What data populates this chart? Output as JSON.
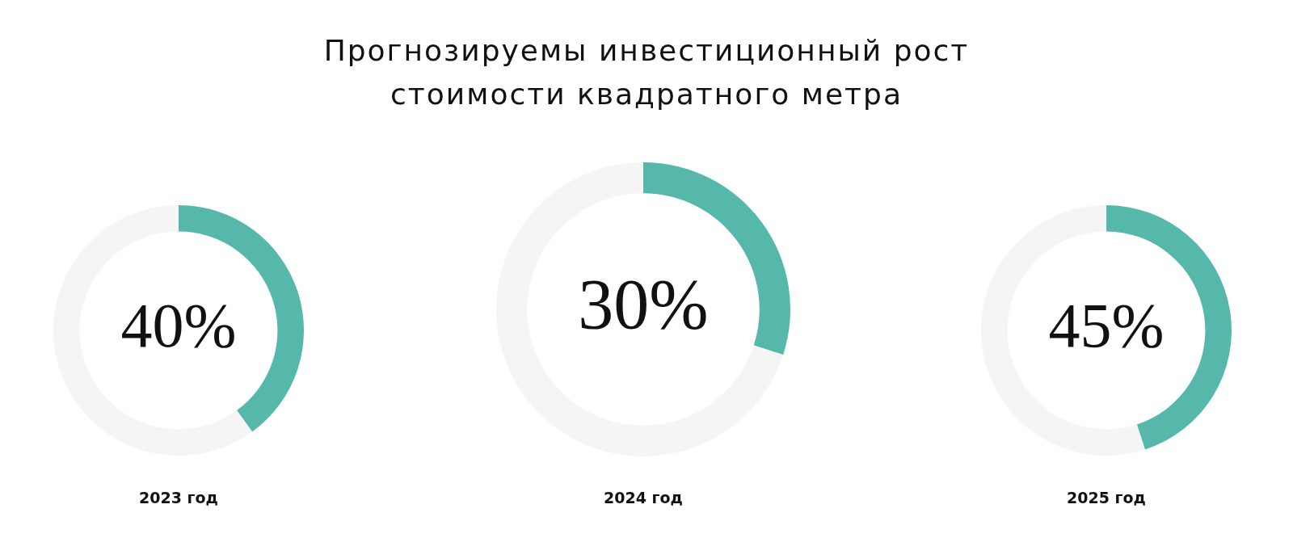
{
  "chart_data": [
    {
      "type": "donut",
      "categories": [
        null,
        null
      ],
      "values": [
        40,
        60
      ],
      "colors": [
        "#55b8aa",
        "#f5f5f5"
      ],
      "value_labels": [
        "40%",
        null
      ],
      "xlabel": "2023 год"
    },
    {
      "type": "donut",
      "title": "Прогнозируемы инвестиционный рост\nстоимости квадратного метра",
      "categories": [
        null,
        null
      ],
      "values": [
        30,
        70
      ],
      "colors": [
        "#55b8aa",
        "#f5f5f5"
      ],
      "value_labels": [
        "30%",
        null
      ],
      "xlabel": "2024 год"
    },
    {
      "type": "donut",
      "categories": [
        null,
        null
      ],
      "values": [
        45,
        55
      ],
      "colors": [
        "#55b8aa",
        "#f5f5f5"
      ],
      "value_labels": [
        "45%",
        null
      ],
      "xlabel": "2025 год"
    }
  ]
}
